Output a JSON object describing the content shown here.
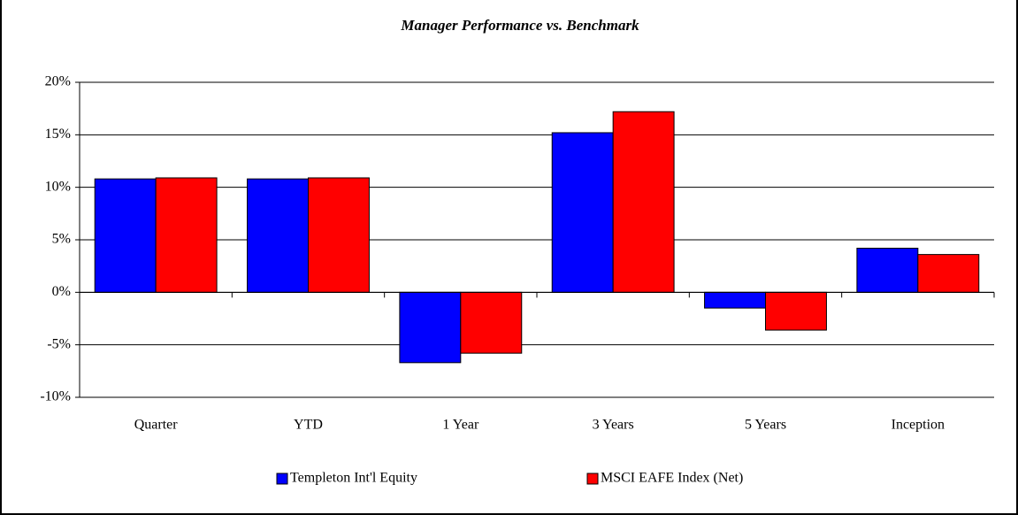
{
  "chart_data": {
    "type": "bar",
    "title": "Manager Performance vs. Benchmark",
    "categories": [
      "Quarter",
      "YTD",
      "1 Year",
      "3 Years",
      "5 Years",
      "Inception"
    ],
    "series": [
      {
        "name": "Templeton Int'l Equity",
        "color": "#0000ff",
        "values": [
          10.8,
          10.8,
          -6.7,
          15.2,
          -1.5,
          4.2
        ]
      },
      {
        "name": "MSCI EAFE Index (Net)",
        "color": "#ff0000",
        "values": [
          10.9,
          10.9,
          -5.8,
          17.2,
          -3.6,
          3.6
        ]
      }
    ],
    "ylim": [
      -10,
      20
    ],
    "yticks": [
      {
        "value": -10,
        "label": "-10%"
      },
      {
        "value": -5,
        "label": "-5%"
      },
      {
        "value": 0,
        "label": "0%"
      },
      {
        "value": 5,
        "label": "5%"
      },
      {
        "value": 10,
        "label": "10%"
      },
      {
        "value": 15,
        "label": "15%"
      },
      {
        "value": 20,
        "label": "20%"
      }
    ],
    "grid": true,
    "legend": "bottom"
  }
}
